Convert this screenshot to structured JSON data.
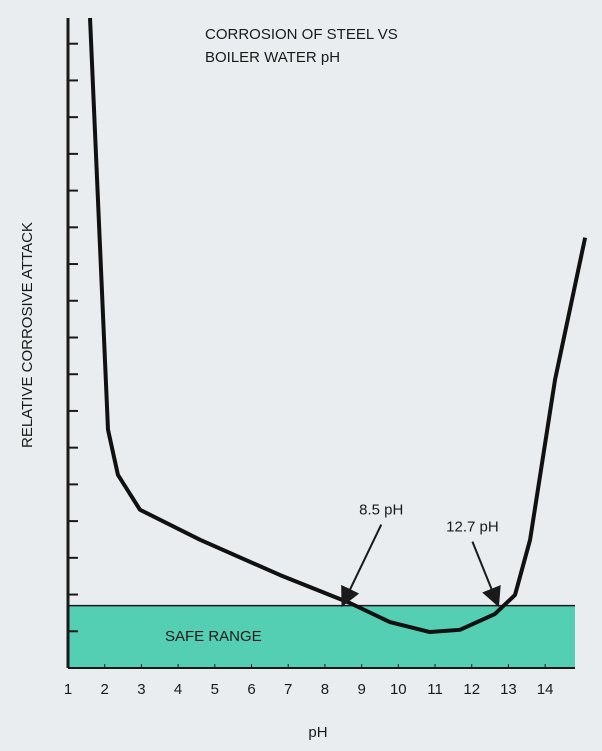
{
  "chart_data": {
    "type": "line",
    "title": [
      "CORROSION OF STEEL VS",
      "BOILER WATER pH"
    ],
    "x_label": "pH",
    "y_label": "RELATIVE CORROSIVE ATTACK",
    "xlim": [
      1,
      15.1
    ],
    "xticks": [
      1,
      2,
      3,
      4,
      5,
      6,
      7,
      8,
      9,
      10,
      11,
      12,
      13,
      14
    ],
    "ylim": [
      0,
      17.7
    ],
    "yticks": [
      1,
      2,
      3,
      4,
      5,
      6,
      7,
      8,
      9,
      10,
      11,
      12,
      13,
      14,
      15,
      16,
      17
    ],
    "series": [
      {
        "color": "#111111",
        "x": [
          1.6,
          2.09,
          2.36,
          2.96,
          4.6,
          6.78,
          8.68,
          9.77,
          10.86,
          11.68,
          12.63,
          13.18,
          13.59,
          14.27,
          15.09
        ],
        "values": [
          17.7,
          6.49,
          5.26,
          4.31,
          3.49,
          2.53,
          1.77,
          1.25,
          0.98,
          1.04,
          1.47,
          1.99,
          3.49,
          7.85,
          11.72
        ]
      }
    ],
    "band": {
      "label": "SAFE RANGE",
      "yrange": [
        0,
        1.7
      ],
      "color": "#55cfb3"
    },
    "annotations": [
      {
        "label": "8.5 pH",
        "x": 8.5,
        "y": 1.7
      },
      {
        "label": "12.7 pH",
        "x": 12.7,
        "y": 1.7
      }
    ]
  }
}
